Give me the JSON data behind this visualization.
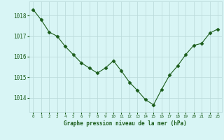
{
  "x": [
    0,
    1,
    2,
    3,
    4,
    5,
    6,
    7,
    8,
    9,
    10,
    11,
    12,
    13,
    14,
    15,
    16,
    17,
    18,
    19,
    20,
    21,
    22,
    23
  ],
  "y": [
    1018.3,
    1017.8,
    1017.2,
    1017.0,
    1016.5,
    1016.1,
    1015.7,
    1015.45,
    1015.2,
    1015.45,
    1015.8,
    1015.3,
    1014.75,
    1014.35,
    1013.9,
    1013.65,
    1014.4,
    1015.1,
    1015.55,
    1016.1,
    1016.55,
    1016.65,
    1017.15,
    1017.35
  ],
  "line_color": "#1a5c1a",
  "marker": "D",
  "markersize": 2.5,
  "linewidth": 0.8,
  "bg_color": "#d8f5f5",
  "grid_color": "#b8d8d8",
  "xlabel": "Graphe pression niveau de la mer (hPa)",
  "xlabel_color": "#1a5c1a",
  "xlabel_fontsize": 5.5,
  "tick_color": "#1a5c1a",
  "yticks": [
    1014,
    1015,
    1016,
    1017,
    1018
  ],
  "ylim": [
    1013.3,
    1018.7
  ],
  "xlim": [
    -0.5,
    23.5
  ],
  "xtick_fontsize": 4.2,
  "ytick_fontsize": 5.5
}
